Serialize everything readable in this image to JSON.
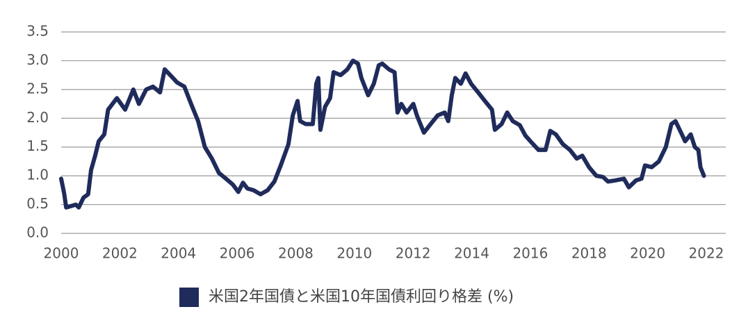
{
  "chart_data": {
    "type": "line",
    "x": [
      2000.0,
      2000.1,
      2000.17,
      2000.5,
      2000.6,
      2000.76,
      2000.92,
      2001.02,
      2001.16,
      2001.28,
      2001.47,
      2001.6,
      2001.9,
      2002.18,
      2002.46,
      2002.65,
      2002.9,
      2003.13,
      2003.37,
      2003.53,
      2003.72,
      2003.96,
      2004.2,
      2004.43,
      2004.67,
      2004.9,
      2005.14,
      2005.38,
      2005.62,
      2005.85,
      2006.04,
      2006.2,
      2006.35,
      2006.56,
      2006.8,
      2007.04,
      2007.27,
      2007.5,
      2007.75,
      2007.9,
      2008.06,
      2008.15,
      2008.34,
      2008.58,
      2008.7,
      2008.77,
      2008.84,
      2009.0,
      2009.17,
      2009.29,
      2009.53,
      2009.76,
      2009.95,
      2010.12,
      2010.24,
      2010.47,
      2010.66,
      2010.83,
      2010.95,
      2011.18,
      2011.37,
      2011.47,
      2011.6,
      2011.78,
      2012.01,
      2012.13,
      2012.37,
      2012.6,
      2012.84,
      2013.08,
      2013.2,
      2013.32,
      2013.44,
      2013.63,
      2013.79,
      2013.98,
      2014.22,
      2014.45,
      2014.69,
      2014.79,
      2015.02,
      2015.21,
      2015.4,
      2015.64,
      2015.83,
      2016.04,
      2016.28,
      2016.52,
      2016.68,
      2016.87,
      2017.11,
      2017.35,
      2017.58,
      2017.77,
      2018.0,
      2018.25,
      2018.48,
      2018.65,
      2018.89,
      2019.19,
      2019.36,
      2019.6,
      2019.79,
      2019.91,
      2020.14,
      2020.38,
      2020.62,
      2020.81,
      2020.95,
      2021.14,
      2021.28,
      2021.47,
      2021.61,
      2021.73,
      2021.8,
      2021.92
    ],
    "series": [
      {
        "name": "米国2年国債と米国10年国債利回り格差 (%)",
        "color": "#1f2b5b",
        "values": [
          0.95,
          0.7,
          0.45,
          0.5,
          0.45,
          0.62,
          0.68,
          1.1,
          1.35,
          1.6,
          1.72,
          2.15,
          2.35,
          2.15,
          2.5,
          2.25,
          2.5,
          2.55,
          2.45,
          2.85,
          2.75,
          2.62,
          2.55,
          2.25,
          1.95,
          1.5,
          1.3,
          1.05,
          0.95,
          0.85,
          0.72,
          0.88,
          0.78,
          0.75,
          0.68,
          0.75,
          0.9,
          1.2,
          1.55,
          2.05,
          2.3,
          1.95,
          1.9,
          1.9,
          2.6,
          2.7,
          1.8,
          2.2,
          2.35,
          2.8,
          2.75,
          2.85,
          3.0,
          2.95,
          2.7,
          2.4,
          2.6,
          2.92,
          2.95,
          2.85,
          2.8,
          2.1,
          2.25,
          2.1,
          2.25,
          2.05,
          1.75,
          1.9,
          2.05,
          2.1,
          1.95,
          2.4,
          2.7,
          2.6,
          2.78,
          2.6,
          2.45,
          2.3,
          2.15,
          1.8,
          1.9,
          2.1,
          1.95,
          1.88,
          1.7,
          1.58,
          1.45,
          1.45,
          1.78,
          1.72,
          1.55,
          1.45,
          1.3,
          1.35,
          1.15,
          1.0,
          0.98,
          0.9,
          0.92,
          0.95,
          0.8,
          0.92,
          0.95,
          1.18,
          1.15,
          1.25,
          1.5,
          1.9,
          1.95,
          1.75,
          1.6,
          1.72,
          1.5,
          1.45,
          1.15,
          1.0
        ]
      }
    ],
    "xlim": [
      2000,
      2022
    ],
    "xticks": [
      2000,
      2002,
      2004,
      2006,
      2008,
      2010,
      2012,
      2014,
      2016,
      2018,
      2020,
      2022
    ],
    "ylim": [
      0,
      3.5
    ],
    "yticks": [
      {
        "value": 0,
        "label": "0.0"
      },
      0.5,
      {
        "value": 1,
        "label": "1.0"
      },
      1.5,
      {
        "value": 2,
        "label": "2.0"
      },
      2.5,
      {
        "value": 3,
        "label": "3.0"
      },
      3.5
    ],
    "grid": true,
    "legend": "bottom"
  }
}
